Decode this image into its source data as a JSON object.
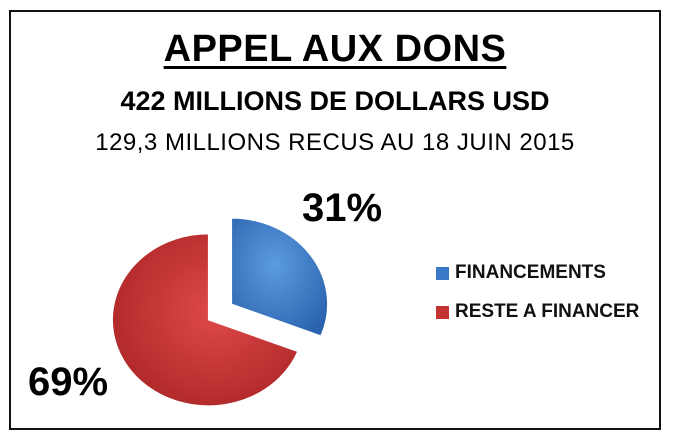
{
  "chart_data": {
    "type": "pie",
    "title": "APPEL AUX DONS",
    "subtitle": "422 MILLIONS DE DOLLARS USD",
    "subtitle2": "129,3 MILLIONS RECUS AU 18 JUIN 2015",
    "slices": [
      {
        "label": "FINANCEMENTS",
        "value": 31,
        "value_label": "31%",
        "color": "#3a79c8"
      },
      {
        "label": "RESTE A FINANCER",
        "value": 69,
        "value_label": "69%",
        "color": "#c43332"
      }
    ],
    "exploded": true,
    "legend_position": "right"
  }
}
